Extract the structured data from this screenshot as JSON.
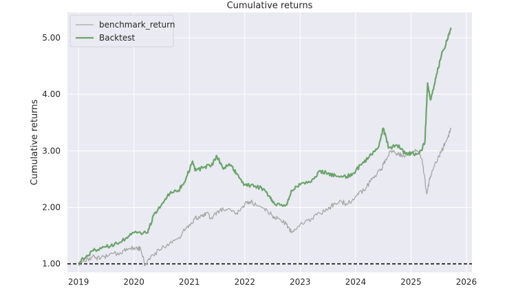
{
  "chart_data": {
    "type": "line",
    "title": "Cumulative returns",
    "xlabel": "",
    "ylabel": "Cumulative returns",
    "xlim": [
      2018.8,
      2026.1
    ],
    "ylim": [
      0.85,
      5.45
    ],
    "x_ticks": [
      2019,
      2020,
      2021,
      2022,
      2023,
      2024,
      2025,
      2026
    ],
    "x_tick_labels": [
      "2019",
      "2020",
      "2021",
      "2022",
      "2023",
      "2024",
      "2025",
      "2026"
    ],
    "y_ticks": [
      1.0,
      2.0,
      3.0,
      4.0,
      5.0
    ],
    "y_tick_labels": [
      "1.00",
      "2.00",
      "3.00",
      "4.00",
      "5.00"
    ],
    "grid": true,
    "legend_position": "top-left",
    "reference_line": {
      "y": 1.0,
      "style": "dashed",
      "color": "#000000"
    },
    "series": [
      {
        "name": "benchmark_return",
        "color": "#a6a6a6",
        "points": [
          [
            2019.0,
            1.0
          ],
          [
            2019.1,
            1.05
          ],
          [
            2019.25,
            1.12
          ],
          [
            2019.4,
            1.1
          ],
          [
            2019.55,
            1.15
          ],
          [
            2019.75,
            1.2
          ],
          [
            2019.9,
            1.27
          ],
          [
            2020.05,
            1.3
          ],
          [
            2020.12,
            1.25
          ],
          [
            2020.2,
            0.97
          ],
          [
            2020.3,
            1.12
          ],
          [
            2020.45,
            1.25
          ],
          [
            2020.6,
            1.35
          ],
          [
            2020.8,
            1.45
          ],
          [
            2020.95,
            1.65
          ],
          [
            2021.1,
            1.8
          ],
          [
            2021.2,
            1.85
          ],
          [
            2021.3,
            1.9
          ],
          [
            2021.4,
            1.82
          ],
          [
            2021.55,
            1.95
          ],
          [
            2021.7,
            1.98
          ],
          [
            2021.85,
            1.9
          ],
          [
            2022.0,
            2.05
          ],
          [
            2022.1,
            2.1
          ],
          [
            2022.2,
            2.05
          ],
          [
            2022.35,
            1.98
          ],
          [
            2022.5,
            1.85
          ],
          [
            2022.6,
            1.8
          ],
          [
            2022.75,
            1.7
          ],
          [
            2022.85,
            1.55
          ],
          [
            2023.0,
            1.7
          ],
          [
            2023.2,
            1.8
          ],
          [
            2023.35,
            1.9
          ],
          [
            2023.5,
            1.95
          ],
          [
            2023.6,
            2.05
          ],
          [
            2023.75,
            2.1
          ],
          [
            2023.85,
            2.05
          ],
          [
            2024.0,
            2.2
          ],
          [
            2024.15,
            2.3
          ],
          [
            2024.3,
            2.5
          ],
          [
            2024.45,
            2.65
          ],
          [
            2024.55,
            2.85
          ],
          [
            2024.62,
            3.0
          ],
          [
            2024.75,
            2.95
          ],
          [
            2024.85,
            2.9
          ],
          [
            2025.0,
            2.95
          ],
          [
            2025.1,
            3.0
          ],
          [
            2025.2,
            2.85
          ],
          [
            2025.28,
            2.25
          ],
          [
            2025.35,
            2.55
          ],
          [
            2025.45,
            2.8
          ],
          [
            2025.55,
            3.0
          ],
          [
            2025.65,
            3.2
          ],
          [
            2025.72,
            3.38
          ]
        ]
      },
      {
        "name": "Backtest",
        "color": "#6aa56a",
        "points": [
          [
            2019.0,
            1.02
          ],
          [
            2019.15,
            1.15
          ],
          [
            2019.3,
            1.25
          ],
          [
            2019.5,
            1.3
          ],
          [
            2019.65,
            1.35
          ],
          [
            2019.85,
            1.45
          ],
          [
            2020.0,
            1.55
          ],
          [
            2020.25,
            1.55
          ],
          [
            2020.35,
            1.85
          ],
          [
            2020.5,
            2.05
          ],
          [
            2020.65,
            2.25
          ],
          [
            2020.8,
            2.3
          ],
          [
            2020.92,
            2.45
          ],
          [
            2021.05,
            2.8
          ],
          [
            2021.12,
            2.65
          ],
          [
            2021.25,
            2.7
          ],
          [
            2021.4,
            2.75
          ],
          [
            2021.5,
            2.9
          ],
          [
            2021.6,
            2.7
          ],
          [
            2021.75,
            2.75
          ],
          [
            2021.85,
            2.6
          ],
          [
            2022.0,
            2.4
          ],
          [
            2022.1,
            2.38
          ],
          [
            2022.3,
            2.35
          ],
          [
            2022.45,
            2.2
          ],
          [
            2022.55,
            2.05
          ],
          [
            2022.75,
            2.05
          ],
          [
            2022.85,
            2.3
          ],
          [
            2023.0,
            2.4
          ],
          [
            2023.2,
            2.45
          ],
          [
            2023.35,
            2.65
          ],
          [
            2023.5,
            2.6
          ],
          [
            2023.65,
            2.55
          ],
          [
            2023.85,
            2.55
          ],
          [
            2023.95,
            2.6
          ],
          [
            2024.1,
            2.75
          ],
          [
            2024.25,
            2.9
          ],
          [
            2024.4,
            3.05
          ],
          [
            2024.5,
            3.4
          ],
          [
            2024.6,
            3.05
          ],
          [
            2024.75,
            3.1
          ],
          [
            2024.9,
            2.95
          ],
          [
            2025.0,
            2.95
          ],
          [
            2025.15,
            2.95
          ],
          [
            2025.25,
            3.15
          ],
          [
            2025.3,
            4.2
          ],
          [
            2025.35,
            3.9
          ],
          [
            2025.45,
            4.3
          ],
          [
            2025.55,
            4.7
          ],
          [
            2025.65,
            4.95
          ],
          [
            2025.72,
            5.18
          ]
        ]
      }
    ]
  }
}
